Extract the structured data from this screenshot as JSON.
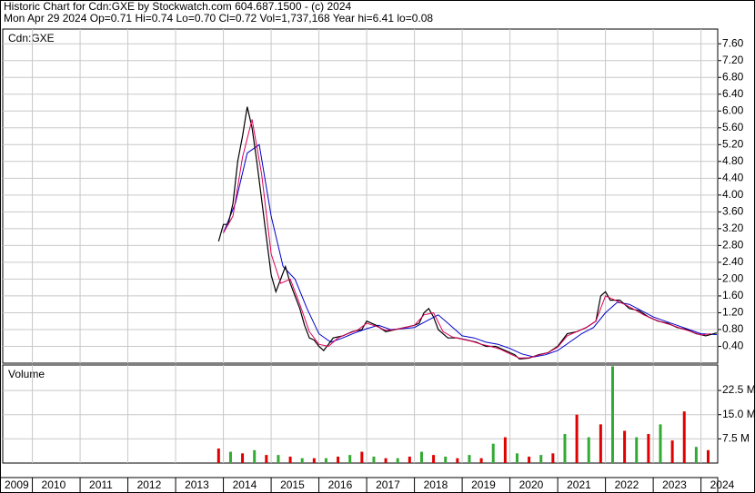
{
  "header": {
    "line1": "Historic Chart for Cdn:GXE by Stockwatch.com 604.687.1500 - (c) 2024",
    "line2": "Mon Apr 29 2024  Op=0.71  Hi=0.74  Lo=0.70  Cl=0.72  Vol=1,737,168  Year hi=6.41  lo=0.08"
  },
  "chart_data": [
    {
      "type": "line",
      "title": "Cdn:GXE",
      "grid": true,
      "xlim": [
        2009.38,
        2024.35
      ],
      "ylim": [
        0,
        7.95
      ],
      "xticks": [
        2009,
        2010,
        2011,
        2012,
        2013,
        2014,
        2015,
        2016,
        2017,
        2018,
        2019,
        2020,
        2021,
        2022,
        2023,
        2024
      ],
      "yticks": [
        {
          "value": 0.4,
          "label": "0.40"
        },
        {
          "value": 0.8,
          "label": "0.80"
        },
        {
          "value": 1.2,
          "label": "1.20"
        },
        {
          "value": 1.6,
          "label": "1.60"
        },
        {
          "value": 2.0,
          "label": "2.00"
        },
        {
          "value": 2.4,
          "label": "2.40"
        },
        {
          "value": 2.8,
          "label": "2.80"
        },
        {
          "value": 3.2,
          "label": "3.20"
        },
        {
          "value": 3.6,
          "label": "3.60"
        },
        {
          "value": 4.0,
          "label": "4.00"
        },
        {
          "value": 4.4,
          "label": "4.40"
        },
        {
          "value": 4.8,
          "label": "4.80"
        },
        {
          "value": 5.2,
          "label": "5.20"
        },
        {
          "value": 5.6,
          "label": "5.60"
        },
        {
          "value": 6.0,
          "label": "6.00"
        },
        {
          "value": 6.4,
          "label": "6.40"
        },
        {
          "value": 6.8,
          "label": "6.80"
        },
        {
          "value": 7.2,
          "label": "7.20"
        },
        {
          "value": 7.6,
          "label": "7.60"
        }
      ],
      "series": [
        {
          "color": "#0000cc",
          "x": [
            2014.0,
            2014.25,
            2014.5,
            2014.75,
            2015.0,
            2015.25,
            2015.5,
            2015.75,
            2016.0,
            2016.25,
            2016.5,
            2016.75,
            2017.0,
            2017.25,
            2017.5,
            2017.75,
            2018.0,
            2018.25,
            2018.5,
            2018.75,
            2019.0,
            2019.25,
            2019.5,
            2019.75,
            2020.0,
            2020.25,
            2020.5,
            2020.75,
            2021.0,
            2021.25,
            2021.5,
            2021.75,
            2022.0,
            2022.25,
            2022.5,
            2022.75,
            2023.0,
            2023.25,
            2023.5,
            2023.75,
            2024.0,
            2024.33
          ],
          "values": [
            3.1,
            3.8,
            5.0,
            5.2,
            3.5,
            2.3,
            2.0,
            1.3,
            0.7,
            0.5,
            0.6,
            0.72,
            0.82,
            0.9,
            0.8,
            0.82,
            0.85,
            1.0,
            1.15,
            0.9,
            0.65,
            0.6,
            0.5,
            0.45,
            0.35,
            0.22,
            0.15,
            0.2,
            0.3,
            0.5,
            0.7,
            0.85,
            1.2,
            1.45,
            1.4,
            1.25,
            1.1,
            1.0,
            0.9,
            0.8,
            0.7,
            0.68
          ]
        },
        {
          "color": "#000000",
          "x": [
            2013.9,
            2014.0,
            2014.1,
            2014.2,
            2014.3,
            2014.4,
            2014.5,
            2014.6,
            2014.7,
            2014.8,
            2014.9,
            2015.0,
            2015.1,
            2015.2,
            2015.3,
            2015.4,
            2015.5,
            2015.6,
            2015.7,
            2015.8,
            2015.9,
            2016.0,
            2016.1,
            2016.2,
            2016.3,
            2016.5,
            2016.7,
            2016.9,
            2017.0,
            2017.2,
            2017.4,
            2017.6,
            2017.8,
            2018.0,
            2018.1,
            2018.2,
            2018.3,
            2018.4,
            2018.5,
            2018.7,
            2018.9,
            2019.1,
            2019.3,
            2019.5,
            2019.7,
            2019.9,
            2020.1,
            2020.2,
            2020.4,
            2020.6,
            2020.8,
            2021.0,
            2021.2,
            2021.4,
            2021.6,
            2021.8,
            2021.9,
            2022.0,
            2022.1,
            2022.3,
            2022.5,
            2022.7,
            2022.9,
            2023.1,
            2023.3,
            2023.5,
            2023.7,
            2023.9,
            2024.1,
            2024.33
          ],
          "values": [
            2.9,
            3.3,
            3.3,
            3.8,
            4.8,
            5.4,
            6.1,
            5.6,
            4.8,
            3.9,
            3.0,
            2.1,
            1.7,
            2.0,
            2.3,
            1.9,
            1.6,
            1.3,
            0.9,
            0.6,
            0.55,
            0.4,
            0.3,
            0.45,
            0.6,
            0.65,
            0.75,
            0.8,
            1.0,
            0.9,
            0.75,
            0.8,
            0.85,
            0.9,
            0.95,
            1.2,
            1.3,
            1.1,
            0.8,
            0.6,
            0.6,
            0.55,
            0.5,
            0.4,
            0.4,
            0.3,
            0.2,
            0.1,
            0.12,
            0.2,
            0.25,
            0.4,
            0.7,
            0.75,
            0.85,
            1.0,
            1.6,
            1.7,
            1.5,
            1.5,
            1.3,
            1.25,
            1.1,
            1.0,
            0.95,
            0.85,
            0.8,
            0.7,
            0.65,
            0.72
          ]
        },
        {
          "color": "#e0005a",
          "x": [
            2014.0,
            2014.2,
            2014.4,
            2014.6,
            2014.8,
            2015.0,
            2015.2,
            2015.4,
            2015.6,
            2015.8,
            2016.0,
            2016.2,
            2016.4,
            2016.6,
            2016.8,
            2017.0,
            2017.2,
            2017.4,
            2017.6,
            2017.8,
            2018.0,
            2018.2,
            2018.4,
            2018.6,
            2018.8,
            2019.0,
            2019.2,
            2019.4,
            2019.6,
            2019.8,
            2020.0,
            2020.2,
            2020.4,
            2020.6,
            2020.8,
            2021.0,
            2021.2,
            2021.4,
            2021.6,
            2021.8,
            2022.0,
            2022.2,
            2022.4,
            2022.6,
            2022.8,
            2023.0,
            2023.2,
            2023.4,
            2023.6,
            2023.8,
            2024.0,
            2024.2
          ],
          "values": [
            3.1,
            3.5,
            4.9,
            5.8,
            4.5,
            2.6,
            1.9,
            2.0,
            1.4,
            0.75,
            0.45,
            0.4,
            0.6,
            0.7,
            0.78,
            0.95,
            0.88,
            0.78,
            0.8,
            0.85,
            0.9,
            1.15,
            1.2,
            0.75,
            0.62,
            0.57,
            0.52,
            0.45,
            0.4,
            0.33,
            0.22,
            0.12,
            0.13,
            0.19,
            0.25,
            0.38,
            0.65,
            0.75,
            0.85,
            1.0,
            1.6,
            1.5,
            1.4,
            1.28,
            1.15,
            1.05,
            0.97,
            0.9,
            0.82,
            0.75,
            0.67,
            0.7
          ]
        }
      ]
    },
    {
      "type": "bar",
      "title": "Volume",
      "grid": true,
      "xlim": [
        2009.38,
        2024.35
      ],
      "ylim": [
        0,
        30.4
      ],
      "yticks": [
        {
          "value": 7.5,
          "label": "7.5 M"
        },
        {
          "value": 15.0,
          "label": "15.0 M"
        },
        {
          "value": 22.5,
          "label": "22.5 M"
        }
      ],
      "x": [
        2013.9,
        2014.15,
        2014.4,
        2014.65,
        2014.9,
        2015.15,
        2015.4,
        2015.65,
        2015.9,
        2016.15,
        2016.4,
        2016.65,
        2016.9,
        2017.15,
        2017.4,
        2017.65,
        2017.9,
        2018.15,
        2018.4,
        2018.65,
        2018.9,
        2019.15,
        2019.4,
        2019.65,
        2019.9,
        2020.15,
        2020.4,
        2020.65,
        2020.9,
        2021.15,
        2021.4,
        2021.65,
        2021.9,
        2022.15,
        2022.4,
        2022.65,
        2022.9,
        2023.15,
        2023.4,
        2023.65,
        2023.9,
        2024.15
      ],
      "values": [
        4.5,
        3.5,
        3,
        4,
        2.5,
        2.5,
        2,
        1.5,
        1.5,
        1.5,
        2,
        2.5,
        3.5,
        2,
        1.5,
        1.5,
        2,
        3.5,
        2.5,
        2,
        1.5,
        2.5,
        1.5,
        6,
        8,
        3,
        2,
        2.5,
        3,
        9,
        15,
        8,
        12,
        30,
        10,
        8,
        9,
        12,
        7,
        16,
        5,
        4
      ],
      "colors": [
        "#e00000",
        "#33aa33",
        "#e00000",
        "#33aa33",
        "#e00000",
        "#33aa33",
        "#e00000",
        "#33aa33",
        "#e00000",
        "#33aa33",
        "#e00000",
        "#33aa33",
        "#e00000",
        "#33aa33",
        "#e00000",
        "#33aa33",
        "#e00000",
        "#33aa33",
        "#e00000",
        "#33aa33",
        "#e00000",
        "#33aa33",
        "#e00000",
        "#33aa33",
        "#e00000",
        "#33aa33",
        "#e00000",
        "#33aa33",
        "#e00000",
        "#33aa33",
        "#e00000",
        "#33aa33",
        "#e00000",
        "#33aa33",
        "#e00000",
        "#33aa33",
        "#e00000",
        "#33aa33",
        "#e00000",
        "#e00000",
        "#33aa33",
        "#e00000"
      ]
    }
  ]
}
